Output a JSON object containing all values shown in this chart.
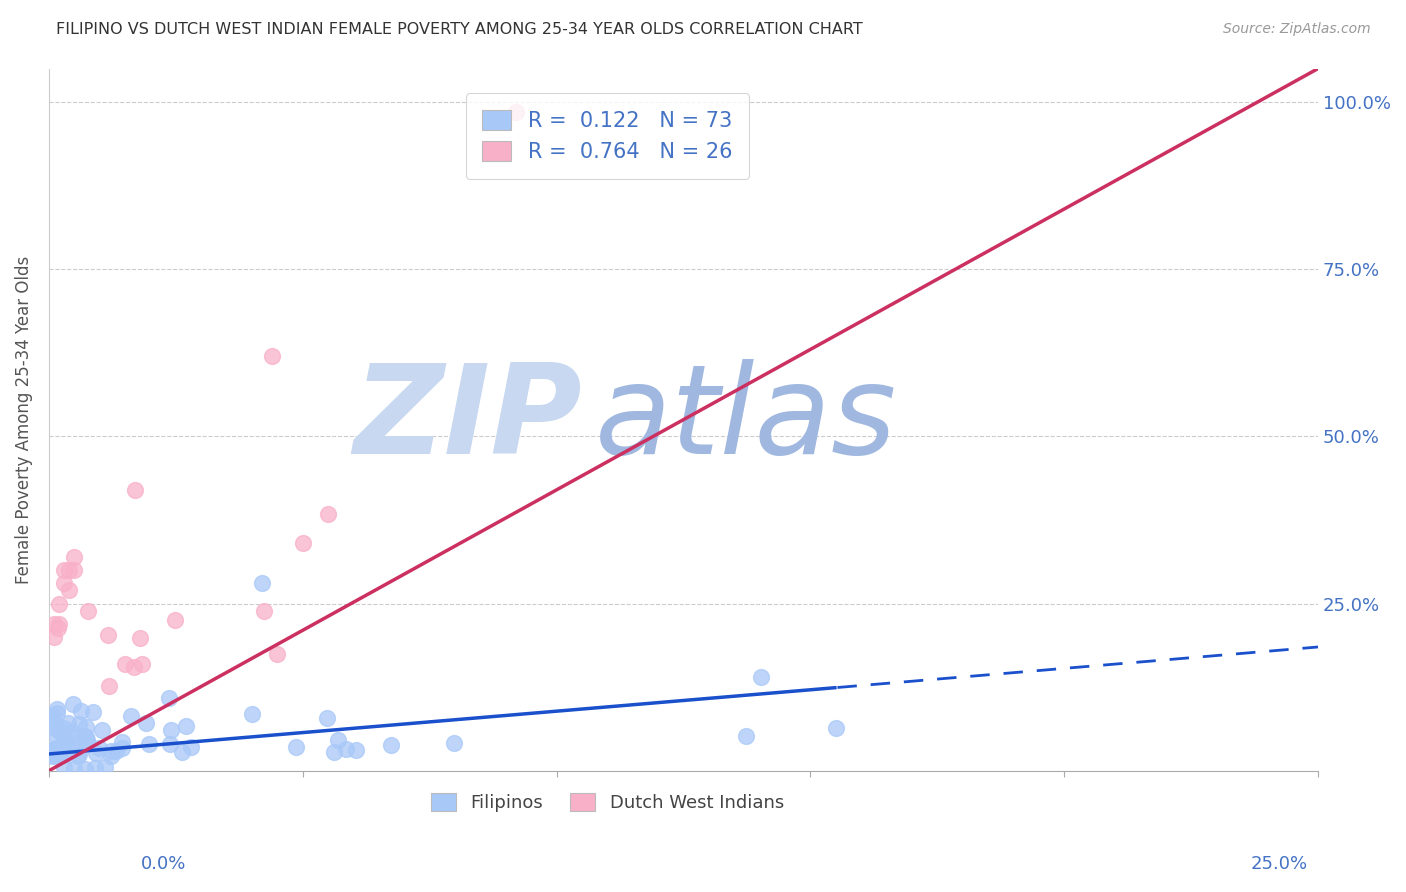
{
  "title": "FILIPINO VS DUTCH WEST INDIAN FEMALE POVERTY AMONG 25-34 YEAR OLDS CORRELATION CHART",
  "source": "Source: ZipAtlas.com",
  "ylabel": "Female Poverty Among 25-34 Year Olds",
  "filipino_r": 0.122,
  "filipino_n": 73,
  "dwi_r": 0.764,
  "dwi_n": 26,
  "filipino_scatter_color": "#A8C8F8",
  "dwi_scatter_color": "#F8B0C8",
  "filipino_line_color": "#1A50CC",
  "dwi_line_color": "#CC3060",
  "axis_label_color": "#4472C4",
  "legend_text_color": "#4472C4",
  "title_color": "#333333",
  "source_color": "#999999",
  "watermark_zip_color": "#C8D8F0",
  "watermark_atlas_color": "#A0B8E0",
  "grid_color": "#CCCCCC",
  "background_color": "#FFFFFF",
  "xlim": [
    0.0,
    0.25
  ],
  "ylim": [
    0.0,
    1.05
  ],
  "yticks": [
    0.0,
    0.25,
    0.5,
    0.75,
    1.0
  ],
  "ytick_labels": [
    "",
    "25.0%",
    "50.0%",
    "75.0%",
    "100.0%"
  ],
  "xtick_label_left": "0.0%",
  "xtick_label_right": "25.0%",
  "legend1_label1": "R =  0.122   N = 73",
  "legend1_label2": "R =  0.764   N = 26",
  "legend2_label1": "Filipinos",
  "legend2_label2": "Dutch West Indians",
  "fil_line_x0": 0.0,
  "fil_line_y0": 0.025,
  "fil_line_x1": 0.25,
  "fil_line_y1": 0.185,
  "fil_line_solid_end": 0.155,
  "dwi_line_x0": 0.0,
  "dwi_line_y0": 0.0,
  "dwi_line_x1": 0.25,
  "dwi_line_y1": 1.05
}
